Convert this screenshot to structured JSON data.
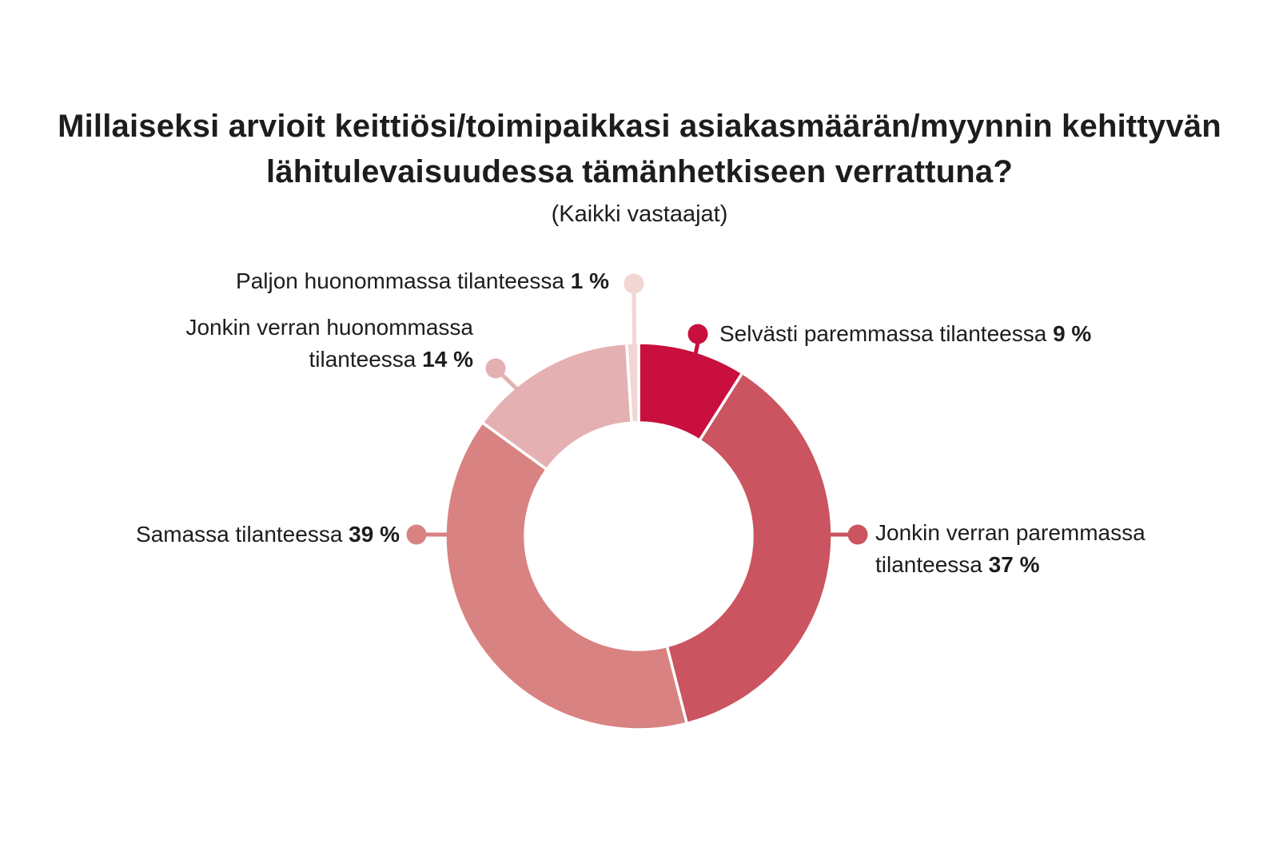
{
  "chart_data": {
    "type": "pie",
    "variant": "donut",
    "title": "Millaiseksi arvioit keittiösi/toimipaikkasi asiakasmäärän/myynnin kehittyvän lähitulevaisuudessa tämänhetkiseen verrattuna?",
    "subtitle": "(Kaikki vastaajat)",
    "start_angle_deg": 0,
    "clockwise": true,
    "legend_position": "callout-labels",
    "background_color": "#ffffff",
    "text_color": "#1d1d1b",
    "segments": [
      {
        "label": "Selvästi paremmassa tilanteessa",
        "value": 9,
        "value_label": "9 %",
        "color": "#c80f3e"
      },
      {
        "label": "Jonkin verran paremmassa tilanteessa",
        "value": 37,
        "value_label": "37 %",
        "color": "#ca5460"
      },
      {
        "label": "Samassa tilanteessa",
        "value": 39,
        "value_label": "39 %",
        "color": "#d88381"
      },
      {
        "label": "Jonkin verran huonommassa tilanteessa",
        "value": 14,
        "value_label": "14 %",
        "color": "#e5b0b2"
      },
      {
        "label": "Paljon huonommassa tilanteessa",
        "value": 1,
        "value_label": "1 %",
        "color": "#f1d6d3"
      }
    ]
  }
}
